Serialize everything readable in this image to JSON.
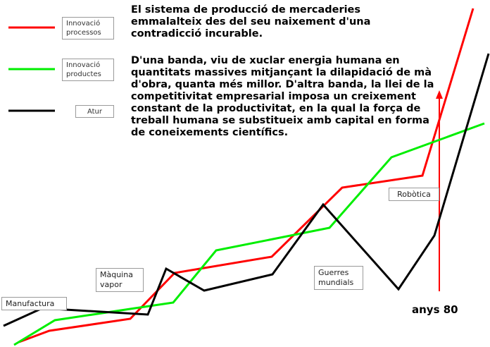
{
  "legend": [
    {
      "label": "Innovació processos",
      "color": "#ff0000"
    },
    {
      "label": "Innovació productes",
      "color": "#00ee00"
    },
    {
      "label": "Atur",
      "color": "#000000"
    }
  ],
  "text": {
    "paragraph1": "El sistema de producció de mercaderies emmalalteix des del seu naixement d'una contradicció incurable.",
    "paragraph2": "D'una banda, viu de xuclar energia humana en quantitats massives mitjançant la dilapidació de mà d'obra, quanta més millor. D'altra banda, la llei de la competitivitat empresarial imposa un creixement constant de la productivitat, en la qual la força de treball humana se substitueix amb capital en forma de coneixements científics."
  },
  "labels": {
    "manufactura": "Manufactura",
    "maquina_vapor": "Màquina vapor",
    "guerres_mundials": "Guerres mundials",
    "robotica": "Robòtica",
    "anys_80": "anys 80"
  },
  "colors": {
    "process": "#ff0000",
    "product": "#00ee00",
    "unemployment": "#000000",
    "marker": "#ff0000"
  }
}
